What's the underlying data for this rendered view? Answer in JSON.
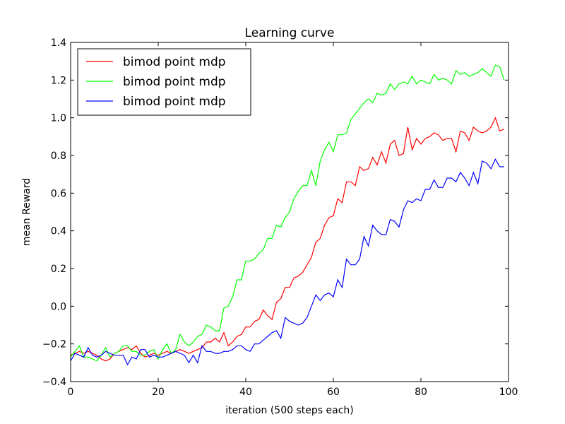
{
  "chart_data": {
    "type": "line",
    "title": "Learning curve",
    "xlabel": "iteration (500 steps each)",
    "ylabel": "mean Reward",
    "xlim": [
      0,
      100
    ],
    "ylim": [
      -0.4,
      1.4
    ],
    "xticks": [
      0,
      20,
      40,
      60,
      80,
      100
    ],
    "yticks": [
      -0.4,
      -0.2,
      0.0,
      0.2,
      0.4,
      0.6,
      0.8,
      1.0,
      1.2,
      1.4
    ],
    "xtick_labels": [
      "0",
      "20",
      "40",
      "60",
      "80",
      "100"
    ],
    "ytick_labels": [
      "−0.4",
      "−0.2",
      "0.0",
      "0.2",
      "0.4",
      "0.6",
      "0.8",
      "1.0",
      "1.2",
      "1.4"
    ],
    "grid": false,
    "legend_position": "top-left",
    "x": [
      0,
      1,
      2,
      3,
      4,
      5,
      6,
      7,
      8,
      9,
      10,
      11,
      12,
      13,
      14,
      15,
      16,
      17,
      18,
      19,
      20,
      21,
      22,
      23,
      24,
      25,
      26,
      27,
      28,
      29,
      30,
      31,
      32,
      33,
      34,
      35,
      36,
      37,
      38,
      39,
      40,
      41,
      42,
      43,
      44,
      45,
      46,
      47,
      48,
      49,
      50,
      51,
      52,
      53,
      54,
      55,
      56,
      57,
      58,
      59,
      60,
      61,
      62,
      63,
      64,
      65,
      66,
      67,
      68,
      69,
      70,
      71,
      72,
      73,
      74,
      75,
      76,
      77,
      78,
      79,
      80,
      81,
      82,
      83,
      84,
      85,
      86,
      87,
      88,
      89,
      90,
      91,
      92,
      93,
      94,
      95,
      96,
      97,
      98,
      99
    ],
    "series": [
      {
        "name": "bimod point mdp",
        "color": "#ff0000",
        "values": [
          -0.26,
          -0.25,
          -0.24,
          -0.25,
          -0.24,
          -0.25,
          -0.26,
          -0.28,
          -0.29,
          -0.28,
          -0.25,
          -0.24,
          -0.23,
          -0.22,
          -0.23,
          -0.21,
          -0.25,
          -0.27,
          -0.26,
          -0.25,
          -0.26,
          -0.25,
          -0.24,
          -0.25,
          -0.24,
          -0.23,
          -0.24,
          -0.25,
          -0.24,
          -0.23,
          -0.22,
          -0.19,
          -0.19,
          -0.17,
          -0.19,
          -0.14,
          -0.21,
          -0.19,
          -0.16,
          -0.15,
          -0.11,
          -0.11,
          -0.08,
          -0.07,
          -0.02,
          -0.05,
          -0.07,
          0.02,
          0.04,
          0.1,
          0.1,
          0.15,
          0.16,
          0.18,
          0.22,
          0.26,
          0.34,
          0.36,
          0.43,
          0.47,
          0.48,
          0.57,
          0.55,
          0.66,
          0.66,
          0.64,
          0.74,
          0.72,
          0.73,
          0.79,
          0.75,
          0.82,
          0.76,
          0.86,
          0.88,
          0.8,
          0.81,
          0.95,
          0.83,
          0.89,
          0.86,
          0.89,
          0.9,
          0.92,
          0.91,
          0.88,
          0.89,
          0.89,
          0.82,
          0.93,
          0.92,
          0.88,
          0.95,
          0.93,
          0.92,
          0.93,
          0.95,
          1.0,
          0.93,
          0.94
        ]
      },
      {
        "name": "bimod point mdp",
        "color": "#00ff00",
        "values": [
          -0.27,
          -0.24,
          -0.21,
          -0.27,
          -0.27,
          -0.28,
          -0.29,
          -0.26,
          -0.22,
          -0.27,
          -0.25,
          -0.24,
          -0.21,
          -0.21,
          -0.24,
          -0.24,
          -0.26,
          -0.26,
          -0.24,
          -0.23,
          -0.28,
          -0.23,
          -0.2,
          -0.25,
          -0.23,
          -0.15,
          -0.19,
          -0.21,
          -0.19,
          -0.16,
          -0.15,
          -0.1,
          -0.11,
          -0.13,
          -0.13,
          -0.01,
          0.0,
          0.05,
          0.14,
          0.14,
          0.24,
          0.24,
          0.25,
          0.28,
          0.3,
          0.36,
          0.36,
          0.43,
          0.42,
          0.47,
          0.5,
          0.57,
          0.61,
          0.64,
          0.64,
          0.72,
          0.64,
          0.77,
          0.83,
          0.87,
          0.82,
          0.91,
          0.91,
          0.92,
          0.99,
          1.02,
          1.05,
          1.08,
          1.1,
          1.08,
          1.13,
          1.12,
          1.13,
          1.18,
          1.15,
          1.18,
          1.19,
          1.18,
          1.22,
          1.18,
          1.2,
          1.19,
          1.18,
          1.23,
          1.2,
          1.21,
          1.2,
          1.18,
          1.25,
          1.23,
          1.24,
          1.22,
          1.23,
          1.24,
          1.26,
          1.24,
          1.22,
          1.28,
          1.27,
          1.2
        ]
      },
      {
        "name": "bimod point mdp",
        "color": "#0000ff",
        "values": [
          -0.29,
          -0.25,
          -0.26,
          -0.27,
          -0.22,
          -0.26,
          -0.27,
          -0.26,
          -0.24,
          -0.25,
          -0.26,
          -0.26,
          -0.26,
          -0.31,
          -0.27,
          -0.28,
          -0.23,
          -0.23,
          -0.27,
          -0.26,
          -0.27,
          -0.27,
          -0.26,
          -0.25,
          -0.24,
          -0.25,
          -0.26,
          -0.3,
          -0.26,
          -0.3,
          -0.21,
          -0.24,
          -0.24,
          -0.25,
          -0.25,
          -0.24,
          -0.24,
          -0.23,
          -0.21,
          -0.21,
          -0.23,
          -0.24,
          -0.2,
          -0.2,
          -0.18,
          -0.16,
          -0.14,
          -0.13,
          -0.17,
          -0.06,
          -0.08,
          -0.09,
          -0.1,
          -0.09,
          -0.06,
          0.0,
          0.06,
          0.03,
          0.06,
          0.07,
          0.05,
          0.14,
          0.1,
          0.25,
          0.22,
          0.22,
          0.25,
          0.37,
          0.32,
          0.43,
          0.4,
          0.38,
          0.38,
          0.46,
          0.45,
          0.42,
          0.51,
          0.56,
          0.55,
          0.57,
          0.56,
          0.62,
          0.62,
          0.67,
          0.63,
          0.63,
          0.68,
          0.68,
          0.66,
          0.71,
          0.68,
          0.64,
          0.71,
          0.65,
          0.77,
          0.76,
          0.73,
          0.78,
          0.74,
          0.74
        ]
      }
    ]
  }
}
